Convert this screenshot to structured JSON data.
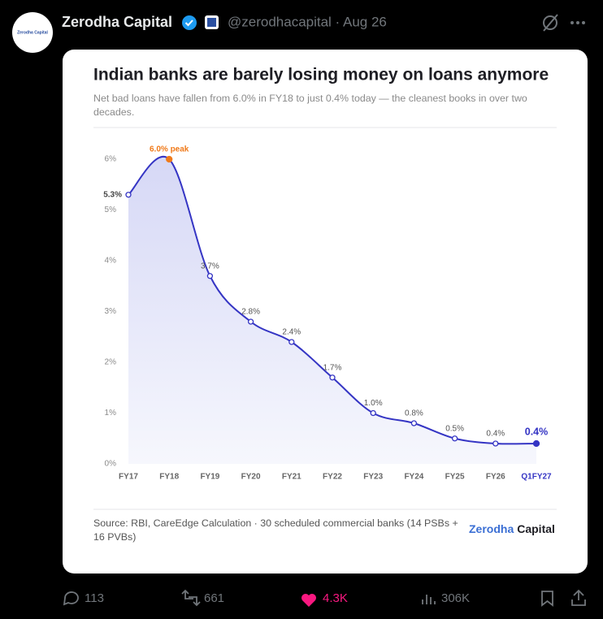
{
  "tweet": {
    "avatar_text": "Zerodha Capital",
    "name": "Zerodha Capital",
    "handle": "@zerodhacapital · Aug 26",
    "replies": "113",
    "reposts": "661",
    "likes": "4.3K",
    "views": "306K"
  },
  "chart_data": {
    "type": "line",
    "title": "Indian banks are barely losing money on loans anymore",
    "subtitle": "Net bad loans have fallen from 6.0% in FY18 to just 0.4% today — the cleanest books in over two decades.",
    "categories": [
      "FY17",
      "FY18",
      "FY19",
      "FY20",
      "FY21",
      "FY22",
      "FY23",
      "FY24",
      "FY25",
      "FY26",
      "Q1FY27"
    ],
    "series": [
      {
        "name": "Net bad loans",
        "color": "#3535c4",
        "values": [
          5.3,
          6.0,
          3.7,
          2.8,
          2.4,
          1.7,
          1.0,
          0.8,
          0.5,
          0.4,
          0.4
        ],
        "value_labels": [
          "5.3%",
          "6.0% peak",
          "3.7%",
          "2.8%",
          "2.4%",
          "1.7%",
          "1.0%",
          "0.8%",
          "0.5%",
          "0.4%",
          "0.4%"
        ]
      }
    ],
    "peak_color": "#f07a1a",
    "ylim": [
      0,
      6
    ],
    "yticks": [
      {
        "value": 0,
        "label": "0%"
      },
      {
        "value": 1,
        "label": "1%"
      },
      {
        "value": 2,
        "label": "2%"
      },
      {
        "value": 3,
        "label": "3%"
      },
      {
        "value": 4,
        "label": "4%"
      },
      {
        "value": 5,
        "label": "5%"
      },
      {
        "value": 6,
        "label": "6%"
      }
    ],
    "grid": false,
    "source": "Source: RBI, CareEdge Calculation · 30 scheduled commercial banks (14 PSBs + 16 PVBs)",
    "brand": {
      "first": "Zerodha",
      "second": "Capital"
    }
  }
}
